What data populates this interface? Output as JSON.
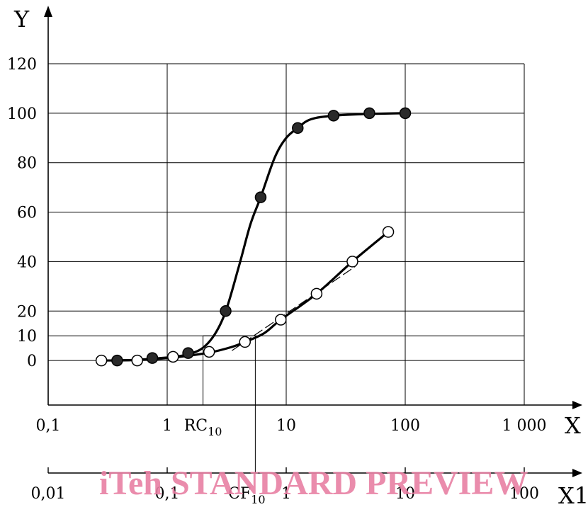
{
  "chart_data": {
    "type": "scatter",
    "x_scale": "log",
    "xlim": [
      0.1,
      1000
    ],
    "ylim": [
      -18,
      120
    ],
    "grid": true,
    "xlabel": "X",
    "ylabel": "Y",
    "x2label": "X1",
    "x_ticks": [
      {
        "value": 0.1,
        "label": "0,1"
      },
      {
        "value": 1,
        "label": "1"
      },
      {
        "value": 10,
        "label": "10"
      },
      {
        "value": 100,
        "label": "100"
      },
      {
        "value": 1000,
        "label": "1 000"
      }
    ],
    "x2_ticks": [
      {
        "value": 0.1,
        "label": "0,01"
      },
      {
        "value": 1,
        "label": "0,1"
      },
      {
        "value": 10,
        "label": "1"
      },
      {
        "value": 100,
        "label": "10"
      },
      {
        "value": 1000,
        "label": "100"
      }
    ],
    "y_ticks": [
      0,
      10,
      20,
      40,
      60,
      80,
      100,
      120
    ],
    "series": [
      {
        "marker": "filled",
        "points": [
          [
            0.38,
            0
          ],
          [
            0.75,
            1
          ],
          [
            1.5,
            3
          ],
          [
            3.1,
            20
          ],
          [
            6.1,
            66
          ],
          [
            12.5,
            94
          ],
          [
            25,
            99
          ],
          [
            50,
            100
          ],
          [
            100,
            100
          ]
        ],
        "curve": [
          [
            0.38,
            0
          ],
          [
            0.75,
            0.7
          ],
          [
            1.5,
            2.5
          ],
          [
            2.2,
            7
          ],
          [
            3.0,
            18
          ],
          [
            4.0,
            38
          ],
          [
            5.0,
            55
          ],
          [
            6.1,
            66
          ],
          [
            8.0,
            82
          ],
          [
            10,
            90
          ],
          [
            12.5,
            94
          ],
          [
            16,
            97.5
          ],
          [
            25,
            99
          ],
          [
            50,
            99.7
          ],
          [
            100,
            100
          ]
        ]
      },
      {
        "marker": "open",
        "points": [
          [
            0.28,
            0
          ],
          [
            0.56,
            0
          ],
          [
            1.12,
            1.5
          ],
          [
            2.25,
            3.5
          ],
          [
            4.5,
            7.5
          ],
          [
            9,
            16.5
          ],
          [
            18,
            27
          ],
          [
            36,
            40
          ],
          [
            72,
            52
          ]
        ],
        "curve": [
          [
            0.28,
            0
          ],
          [
            0.56,
            0.2
          ],
          [
            1.12,
            1.2
          ],
          [
            2.25,
            3.2
          ],
          [
            3.5,
            5.5
          ],
          [
            4.5,
            7.5
          ],
          [
            6.5,
            11
          ],
          [
            9,
            16.5
          ],
          [
            18,
            27
          ],
          [
            36,
            40
          ],
          [
            72,
            52
          ]
        ]
      }
    ],
    "tangent": {
      "x": [
        3.5,
        38
      ],
      "y": [
        4,
        38
      ]
    },
    "annotations": [
      {
        "name": "rc10",
        "text": "RC",
        "subscript": "10",
        "x": 2,
        "y": 10
      },
      {
        "name": "cf10",
        "text": "CF",
        "subscript": "10",
        "x": 5.5,
        "y": 10
      }
    ],
    "colors": {
      "line": "#000000",
      "filled_marker": "#2a2a2a",
      "open_marker": "#ffffff"
    }
  },
  "watermark": "iTeh STANDARD PREVIEW"
}
